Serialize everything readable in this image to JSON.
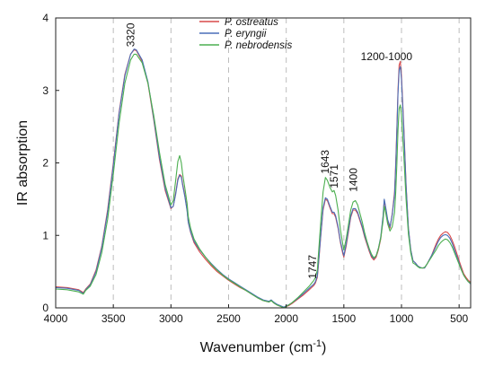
{
  "chart_data": {
    "type": "line",
    "xlabel": "Wavenumber (cm",
    "xlabel_sup": "-1",
    "xlabel_close": ")",
    "ylabel": "IR absorption",
    "xlim": [
      4000,
      400
    ],
    "ylim": [
      0,
      4
    ],
    "x_ticks": [
      "4000",
      "3500",
      "3000",
      "2500",
      "2000",
      "1500",
      "1000",
      "500"
    ],
    "y_ticks": [
      "0",
      "1",
      "2",
      "3",
      "4"
    ],
    "x_tick_values": [
      4000,
      3500,
      3000,
      2500,
      2000,
      1500,
      1000,
      500
    ],
    "y_tick_values": [
      0,
      1,
      2,
      3,
      4
    ],
    "dashed_gridlines_x": [
      3500,
      3000,
      2500,
      2000,
      1500,
      1000,
      500
    ],
    "legend_position": "top-center",
    "series": [
      {
        "name": "P. ostreatus",
        "color": "#d94a4a",
        "x": [
          4000,
          3900,
          3800,
          3760,
          3740,
          3700,
          3650,
          3600,
          3550,
          3500,
          3450,
          3400,
          3350,
          3320,
          3300,
          3250,
          3200,
          3150,
          3100,
          3050,
          3000,
          2980,
          2960,
          2940,
          2925,
          2910,
          2900,
          2880,
          2860,
          2850,
          2830,
          2800,
          2750,
          2700,
          2650,
          2600,
          2550,
          2500,
          2450,
          2400,
          2350,
          2300,
          2250,
          2200,
          2150,
          2130,
          2110,
          2100,
          2080,
          2050,
          2020,
          2000,
          1980,
          1950,
          1900,
          1850,
          1800,
          1780,
          1760,
          1747,
          1730,
          1720,
          1700,
          1680,
          1660,
          1643,
          1620,
          1600,
          1585,
          1571,
          1550,
          1530,
          1510,
          1500,
          1480,
          1460,
          1440,
          1420,
          1400,
          1380,
          1360,
          1340,
          1320,
          1300,
          1280,
          1260,
          1240,
          1220,
          1200,
          1180,
          1160,
          1150,
          1140,
          1120,
          1100,
          1080,
          1060,
          1050,
          1040,
          1030,
          1020,
          1010,
          1000,
          980,
          960,
          940,
          920,
          900,
          880,
          860,
          840,
          820,
          800,
          780,
          760,
          740,
          720,
          700,
          680,
          660,
          640,
          620,
          600,
          580,
          560,
          540,
          520,
          500,
          480,
          460,
          440,
          420,
          400
        ],
        "y": [
          0.29,
          0.28,
          0.25,
          0.21,
          0.26,
          0.33,
          0.52,
          0.85,
          1.35,
          2.0,
          2.7,
          3.22,
          3.5,
          3.56,
          3.55,
          3.4,
          3.1,
          2.6,
          2.05,
          1.62,
          1.37,
          1.4,
          1.58,
          1.78,
          1.84,
          1.82,
          1.72,
          1.56,
          1.35,
          1.18,
          1.04,
          0.9,
          0.77,
          0.67,
          0.58,
          0.5,
          0.44,
          0.38,
          0.33,
          0.28,
          0.24,
          0.19,
          0.14,
          0.1,
          0.08,
          0.1,
          0.07,
          0.06,
          0.04,
          0.02,
          0.0,
          0.02,
          0.03,
          0.06,
          0.12,
          0.18,
          0.25,
          0.28,
          0.31,
          0.34,
          0.42,
          0.6,
          1.0,
          1.35,
          1.5,
          1.48,
          1.38,
          1.3,
          1.3,
          1.25,
          1.1,
          0.9,
          0.75,
          0.7,
          0.85,
          1.05,
          1.25,
          1.35,
          1.35,
          1.3,
          1.2,
          1.1,
          0.98,
          0.88,
          0.78,
          0.7,
          0.66,
          0.7,
          0.8,
          0.95,
          1.25,
          1.48,
          1.4,
          1.2,
          1.1,
          1.3,
          1.6,
          2.0,
          2.5,
          3.0,
          3.35,
          3.4,
          3.2,
          2.5,
          1.7,
          1.1,
          0.8,
          0.65,
          0.62,
          0.58,
          0.56,
          0.55,
          0.55,
          0.6,
          0.66,
          0.72,
          0.8,
          0.88,
          0.95,
          1.0,
          1.03,
          1.05,
          1.04,
          1.0,
          0.93,
          0.85,
          0.75,
          0.65,
          0.56,
          0.47,
          0.42,
          0.38,
          0.35
        ],
        "rows": [
          [
            "4000",
            "0.29"
          ],
          [
            "3320",
            "3.56"
          ],
          [
            "2925",
            "1.84"
          ],
          [
            "1643",
            "1.48"
          ],
          [
            "1400",
            "1.35"
          ],
          [
            "1050",
            "3.4"
          ],
          [
            "600",
            "1.05"
          ]
        ]
      },
      {
        "name": "P. eryngii",
        "color": "#4a6fb8",
        "x": [
          4000,
          3900,
          3800,
          3760,
          3740,
          3700,
          3650,
          3600,
          3550,
          3500,
          3450,
          3400,
          3350,
          3320,
          3300,
          3250,
          3200,
          3150,
          3100,
          3050,
          3000,
          2980,
          2960,
          2940,
          2925,
          2910,
          2900,
          2880,
          2860,
          2850,
          2830,
          2800,
          2750,
          2700,
          2650,
          2600,
          2550,
          2500,
          2450,
          2400,
          2350,
          2300,
          2250,
          2200,
          2150,
          2130,
          2110,
          2100,
          2080,
          2050,
          2020,
          2000,
          1980,
          1950,
          1900,
          1850,
          1800,
          1780,
          1760,
          1747,
          1730,
          1720,
          1700,
          1680,
          1660,
          1643,
          1620,
          1600,
          1585,
          1571,
          1550,
          1530,
          1510,
          1500,
          1480,
          1460,
          1440,
          1420,
          1400,
          1380,
          1360,
          1340,
          1320,
          1300,
          1280,
          1260,
          1240,
          1220,
          1200,
          1180,
          1160,
          1150,
          1140,
          1120,
          1100,
          1080,
          1060,
          1050,
          1040,
          1030,
          1020,
          1010,
          1000,
          980,
          960,
          940,
          920,
          900,
          880,
          860,
          840,
          820,
          800,
          780,
          760,
          740,
          720,
          700,
          680,
          660,
          640,
          620,
          600,
          580,
          560,
          540,
          520,
          500,
          480,
          460,
          440,
          420,
          400
        ],
        "y": [
          0.28,
          0.27,
          0.24,
          0.2,
          0.25,
          0.32,
          0.5,
          0.83,
          1.32,
          1.97,
          2.68,
          3.2,
          3.5,
          3.57,
          3.56,
          3.42,
          3.12,
          2.62,
          2.08,
          1.65,
          1.38,
          1.4,
          1.56,
          1.76,
          1.83,
          1.8,
          1.7,
          1.54,
          1.34,
          1.18,
          1.05,
          0.92,
          0.8,
          0.7,
          0.61,
          0.53,
          0.46,
          0.4,
          0.35,
          0.3,
          0.25,
          0.2,
          0.15,
          0.11,
          0.09,
          0.11,
          0.08,
          0.07,
          0.05,
          0.03,
          0.01,
          0.03,
          0.04,
          0.07,
          0.13,
          0.2,
          0.27,
          0.3,
          0.33,
          0.36,
          0.44,
          0.62,
          1.02,
          1.38,
          1.52,
          1.5,
          1.4,
          1.32,
          1.32,
          1.27,
          1.12,
          0.92,
          0.78,
          0.72,
          0.88,
          1.08,
          1.27,
          1.37,
          1.37,
          1.32,
          1.22,
          1.12,
          1.0,
          0.9,
          0.8,
          0.72,
          0.68,
          0.72,
          0.82,
          0.98,
          1.27,
          1.5,
          1.42,
          1.22,
          1.12,
          1.28,
          1.56,
          1.95,
          2.45,
          2.95,
          3.28,
          3.33,
          3.15,
          2.45,
          1.68,
          1.1,
          0.8,
          0.65,
          0.62,
          0.58,
          0.56,
          0.55,
          0.55,
          0.6,
          0.66,
          0.72,
          0.78,
          0.85,
          0.92,
          0.97,
          1.0,
          1.01,
          1.0,
          0.96,
          0.89,
          0.8,
          0.71,
          0.62,
          0.53,
          0.45,
          0.4,
          0.36,
          0.33
        ],
        "rows": [
          [
            "4000",
            "0.28"
          ],
          [
            "3320",
            "3.57"
          ],
          [
            "2925",
            "1.83"
          ],
          [
            "1643",
            "1.5"
          ],
          [
            "1400",
            "1.37"
          ],
          [
            "1050",
            "3.33"
          ],
          [
            "600",
            "1.01"
          ]
        ]
      },
      {
        "name": "P. nebrodensis",
        "color": "#4caf50",
        "x": [
          4000,
          3900,
          3800,
          3760,
          3740,
          3700,
          3650,
          3600,
          3550,
          3500,
          3450,
          3400,
          3350,
          3320,
          3300,
          3250,
          3200,
          3150,
          3100,
          3050,
          3000,
          2980,
          2960,
          2940,
          2925,
          2910,
          2900,
          2880,
          2860,
          2850,
          2830,
          2800,
          2750,
          2700,
          2650,
          2600,
          2550,
          2500,
          2450,
          2400,
          2350,
          2300,
          2250,
          2200,
          2150,
          2130,
          2110,
          2100,
          2080,
          2050,
          2020,
          2000,
          1980,
          1950,
          1900,
          1850,
          1800,
          1780,
          1760,
          1747,
          1730,
          1720,
          1700,
          1680,
          1660,
          1643,
          1620,
          1600,
          1585,
          1571,
          1550,
          1530,
          1510,
          1500,
          1480,
          1460,
          1440,
          1420,
          1400,
          1380,
          1360,
          1340,
          1320,
          1300,
          1280,
          1260,
          1240,
          1220,
          1200,
          1180,
          1160,
          1150,
          1140,
          1120,
          1100,
          1080,
          1060,
          1050,
          1040,
          1030,
          1020,
          1010,
          1000,
          980,
          960,
          940,
          920,
          900,
          880,
          860,
          840,
          820,
          800,
          780,
          760,
          740,
          720,
          700,
          680,
          660,
          640,
          620,
          600,
          580,
          560,
          540,
          520,
          500,
          480,
          460,
          440,
          420,
          400
        ],
        "y": [
          0.26,
          0.25,
          0.22,
          0.19,
          0.24,
          0.3,
          0.46,
          0.76,
          1.22,
          1.85,
          2.55,
          3.1,
          3.42,
          3.5,
          3.5,
          3.38,
          3.1,
          2.66,
          2.15,
          1.7,
          1.42,
          1.48,
          1.75,
          2.02,
          2.1,
          2.0,
          1.86,
          1.66,
          1.44,
          1.26,
          1.1,
          0.95,
          0.81,
          0.7,
          0.6,
          0.52,
          0.45,
          0.39,
          0.34,
          0.29,
          0.24,
          0.19,
          0.14,
          0.1,
          0.08,
          0.1,
          0.07,
          0.06,
          0.04,
          0.02,
          0.0,
          0.02,
          0.04,
          0.07,
          0.14,
          0.22,
          0.3,
          0.34,
          0.38,
          0.42,
          0.52,
          0.75,
          1.2,
          1.6,
          1.8,
          1.76,
          1.66,
          1.6,
          1.62,
          1.55,
          1.35,
          1.08,
          0.88,
          0.8,
          0.95,
          1.15,
          1.35,
          1.46,
          1.48,
          1.42,
          1.3,
          1.18,
          1.04,
          0.92,
          0.82,
          0.74,
          0.69,
          0.72,
          0.82,
          0.96,
          1.2,
          1.4,
          1.34,
          1.16,
          1.06,
          1.12,
          1.32,
          1.6,
          2.0,
          2.45,
          2.75,
          2.8,
          2.66,
          2.1,
          1.5,
          1.02,
          0.76,
          0.62,
          0.6,
          0.57,
          0.55,
          0.55,
          0.56,
          0.6,
          0.65,
          0.7,
          0.75,
          0.8,
          0.86,
          0.9,
          0.93,
          0.95,
          0.94,
          0.9,
          0.84,
          0.76,
          0.68,
          0.6,
          0.52,
          0.45,
          0.4,
          0.36,
          0.34
        ],
        "rows": [
          [
            "4000",
            "0.26"
          ],
          [
            "3320",
            "3.5"
          ],
          [
            "2925",
            "2.1"
          ],
          [
            "1643",
            "1.76"
          ],
          [
            "1400",
            "1.48"
          ],
          [
            "1050",
            "2.8"
          ],
          [
            "600",
            "0.95"
          ]
        ]
      }
    ],
    "annotations": [
      {
        "text": "3320",
        "x": 3320,
        "y": 3.6,
        "rotate": -90
      },
      {
        "text": "1747",
        "x": 1740,
        "y": 0.4,
        "rotate": -90
      },
      {
        "text": "1643",
        "x": 1630,
        "y": 1.85,
        "rotate": -90
      },
      {
        "text": "1571",
        "x": 1555,
        "y": 1.65,
        "rotate": -90
      },
      {
        "text": "1400",
        "x": 1385,
        "y": 1.6,
        "rotate": -90
      },
      {
        "text": "1200-1000",
        "x": 1130,
        "y": 3.42,
        "rotate": 0
      }
    ]
  }
}
